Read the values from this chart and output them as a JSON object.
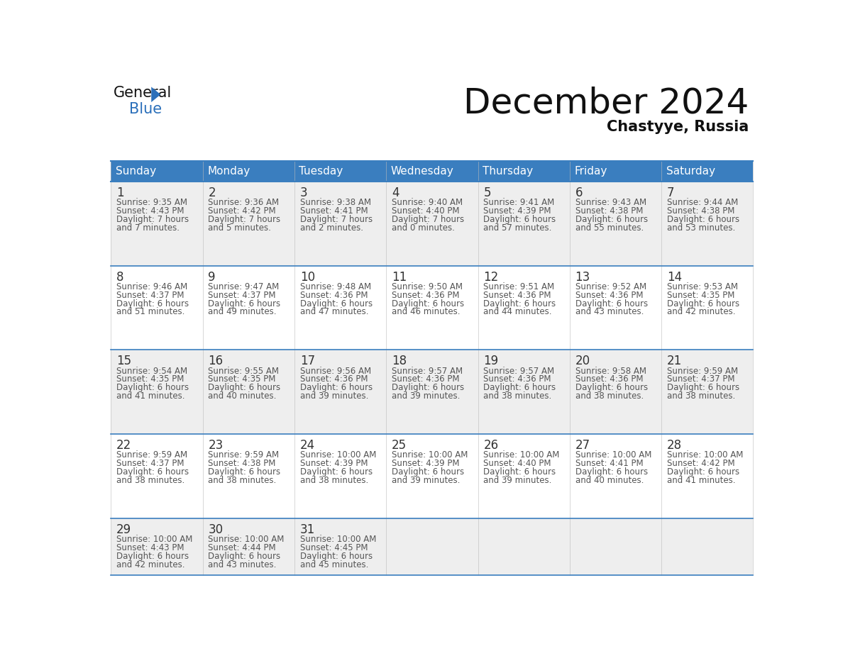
{
  "title": "December 2024",
  "subtitle": "Chastyye, Russia",
  "header_color": "#3a7ebf",
  "header_text_color": "#ffffff",
  "row_colors": [
    "#eeeeee",
    "#ffffff",
    "#eeeeee",
    "#ffffff",
    "#eeeeee"
  ],
  "border_color": "#3a7ebf",
  "thin_border_color": "#aaaaaa",
  "day_names": [
    "Sunday",
    "Monday",
    "Tuesday",
    "Wednesday",
    "Thursday",
    "Friday",
    "Saturday"
  ],
  "days": [
    {
      "day": 1,
      "col": 0,
      "row": 0,
      "sunrise": "9:35 AM",
      "sunset": "4:43 PM",
      "daylight": "7 hours and 7 minutes."
    },
    {
      "day": 2,
      "col": 1,
      "row": 0,
      "sunrise": "9:36 AM",
      "sunset": "4:42 PM",
      "daylight": "7 hours and 5 minutes."
    },
    {
      "day": 3,
      "col": 2,
      "row": 0,
      "sunrise": "9:38 AM",
      "sunset": "4:41 PM",
      "daylight": "7 hours and 2 minutes."
    },
    {
      "day": 4,
      "col": 3,
      "row": 0,
      "sunrise": "9:40 AM",
      "sunset": "4:40 PM",
      "daylight": "7 hours and 0 minutes."
    },
    {
      "day": 5,
      "col": 4,
      "row": 0,
      "sunrise": "9:41 AM",
      "sunset": "4:39 PM",
      "daylight": "6 hours and 57 minutes."
    },
    {
      "day": 6,
      "col": 5,
      "row": 0,
      "sunrise": "9:43 AM",
      "sunset": "4:38 PM",
      "daylight": "6 hours and 55 minutes."
    },
    {
      "day": 7,
      "col": 6,
      "row": 0,
      "sunrise": "9:44 AM",
      "sunset": "4:38 PM",
      "daylight": "6 hours and 53 minutes."
    },
    {
      "day": 8,
      "col": 0,
      "row": 1,
      "sunrise": "9:46 AM",
      "sunset": "4:37 PM",
      "daylight": "6 hours and 51 minutes."
    },
    {
      "day": 9,
      "col": 1,
      "row": 1,
      "sunrise": "9:47 AM",
      "sunset": "4:37 PM",
      "daylight": "6 hours and 49 minutes."
    },
    {
      "day": 10,
      "col": 2,
      "row": 1,
      "sunrise": "9:48 AM",
      "sunset": "4:36 PM",
      "daylight": "6 hours and 47 minutes."
    },
    {
      "day": 11,
      "col": 3,
      "row": 1,
      "sunrise": "9:50 AM",
      "sunset": "4:36 PM",
      "daylight": "6 hours and 46 minutes."
    },
    {
      "day": 12,
      "col": 4,
      "row": 1,
      "sunrise": "9:51 AM",
      "sunset": "4:36 PM",
      "daylight": "6 hours and 44 minutes."
    },
    {
      "day": 13,
      "col": 5,
      "row": 1,
      "sunrise": "9:52 AM",
      "sunset": "4:36 PM",
      "daylight": "6 hours and 43 minutes."
    },
    {
      "day": 14,
      "col": 6,
      "row": 1,
      "sunrise": "9:53 AM",
      "sunset": "4:35 PM",
      "daylight": "6 hours and 42 minutes."
    },
    {
      "day": 15,
      "col": 0,
      "row": 2,
      "sunrise": "9:54 AM",
      "sunset": "4:35 PM",
      "daylight": "6 hours and 41 minutes."
    },
    {
      "day": 16,
      "col": 1,
      "row": 2,
      "sunrise": "9:55 AM",
      "sunset": "4:35 PM",
      "daylight": "6 hours and 40 minutes."
    },
    {
      "day": 17,
      "col": 2,
      "row": 2,
      "sunrise": "9:56 AM",
      "sunset": "4:36 PM",
      "daylight": "6 hours and 39 minutes."
    },
    {
      "day": 18,
      "col": 3,
      "row": 2,
      "sunrise": "9:57 AM",
      "sunset": "4:36 PM",
      "daylight": "6 hours and 39 minutes."
    },
    {
      "day": 19,
      "col": 4,
      "row": 2,
      "sunrise": "9:57 AM",
      "sunset": "4:36 PM",
      "daylight": "6 hours and 38 minutes."
    },
    {
      "day": 20,
      "col": 5,
      "row": 2,
      "sunrise": "9:58 AM",
      "sunset": "4:36 PM",
      "daylight": "6 hours and 38 minutes."
    },
    {
      "day": 21,
      "col": 6,
      "row": 2,
      "sunrise": "9:59 AM",
      "sunset": "4:37 PM",
      "daylight": "6 hours and 38 minutes."
    },
    {
      "day": 22,
      "col": 0,
      "row": 3,
      "sunrise": "9:59 AM",
      "sunset": "4:37 PM",
      "daylight": "6 hours and 38 minutes."
    },
    {
      "day": 23,
      "col": 1,
      "row": 3,
      "sunrise": "9:59 AM",
      "sunset": "4:38 PM",
      "daylight": "6 hours and 38 minutes."
    },
    {
      "day": 24,
      "col": 2,
      "row": 3,
      "sunrise": "10:00 AM",
      "sunset": "4:39 PM",
      "daylight": "6 hours and 38 minutes."
    },
    {
      "day": 25,
      "col": 3,
      "row": 3,
      "sunrise": "10:00 AM",
      "sunset": "4:39 PM",
      "daylight": "6 hours and 39 minutes."
    },
    {
      "day": 26,
      "col": 4,
      "row": 3,
      "sunrise": "10:00 AM",
      "sunset": "4:40 PM",
      "daylight": "6 hours and 39 minutes."
    },
    {
      "day": 27,
      "col": 5,
      "row": 3,
      "sunrise": "10:00 AM",
      "sunset": "4:41 PM",
      "daylight": "6 hours and 40 minutes."
    },
    {
      "day": 28,
      "col": 6,
      "row": 3,
      "sunrise": "10:00 AM",
      "sunset": "4:42 PM",
      "daylight": "6 hours and 41 minutes."
    },
    {
      "day": 29,
      "col": 0,
      "row": 4,
      "sunrise": "10:00 AM",
      "sunset": "4:43 PM",
      "daylight": "6 hours and 42 minutes."
    },
    {
      "day": 30,
      "col": 1,
      "row": 4,
      "sunrise": "10:00 AM",
      "sunset": "4:44 PM",
      "daylight": "6 hours and 43 minutes."
    },
    {
      "day": 31,
      "col": 2,
      "row": 4,
      "sunrise": "10:00 AM",
      "sunset": "4:45 PM",
      "daylight": "6 hours and 45 minutes."
    }
  ],
  "num_rows": 5,
  "num_cols": 7,
  "title_fontsize": 36,
  "subtitle_fontsize": 15,
  "header_fontsize": 11,
  "day_num_fontsize": 12,
  "info_fontsize": 8.5,
  "logo_general_color": "#111111",
  "logo_blue_color": "#2a6fba",
  "logo_triangle_color": "#2a6fba"
}
